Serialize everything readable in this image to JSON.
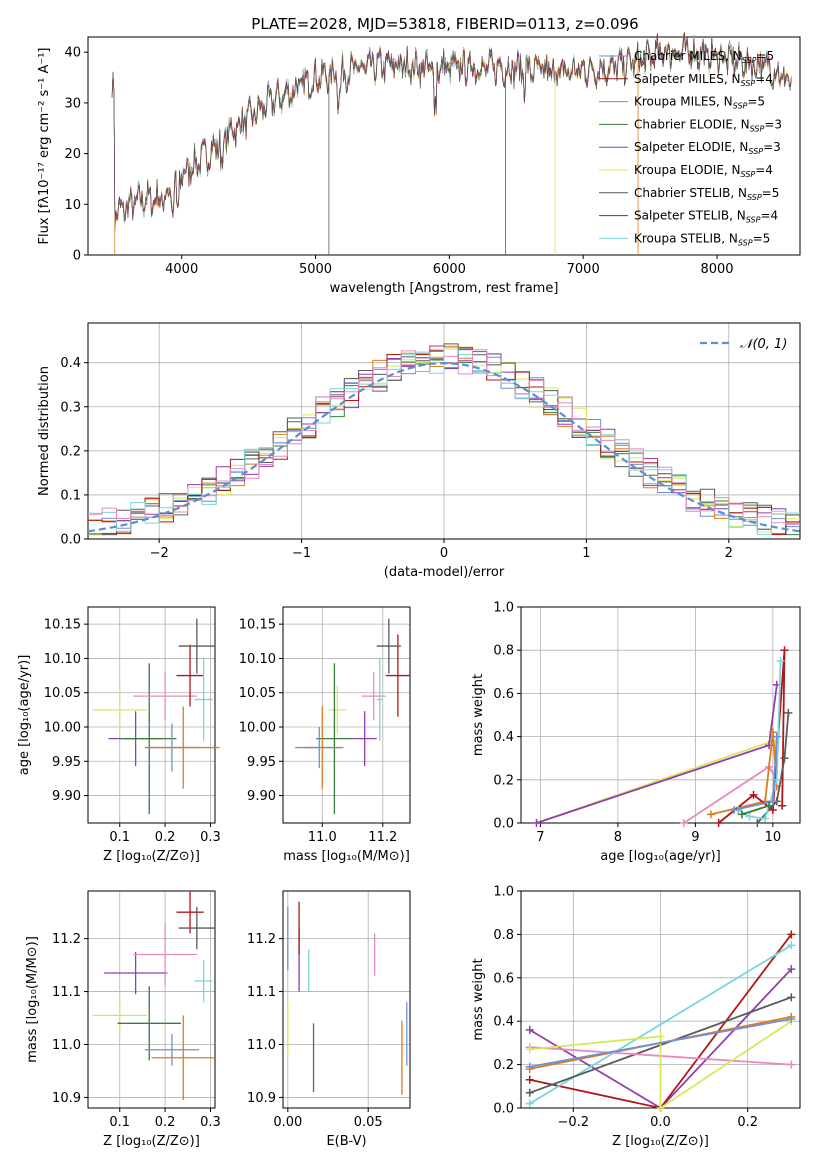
{
  "figure_title": "PLATE=2028, MJD=53818, FIBERID=0113, z=0.096",
  "colors": [
    "#6f8fd8",
    "#8b1a1a",
    "#e07b1e",
    "#3a7d3a",
    "#8e3fb0",
    "#d6e85a",
    "#5a5a5a",
    "#b01818",
    "#78d6dc"
  ],
  "hist_colors": [
    "#6f8fd8",
    "#e07b1e",
    "#3a7d3a",
    "#8e3fb0",
    "#d6e85a",
    "#5a5a5a",
    "#b01818",
    "#78d6dc",
    "#e88abf"
  ],
  "chart_data": [
    {
      "type": "line",
      "panel": "spectrum",
      "title": "",
      "xlabel": "wavelength [Angstrom, rest frame]",
      "ylabel": "Flux [fλ10⁻¹⁷ erg cm⁻² s⁻¹ A⁻¹]",
      "xlim": [
        3300,
        8620
      ],
      "ylim": [
        0,
        43
      ],
      "xticks": [
        4000,
        5000,
        6000,
        7000,
        8000
      ],
      "yticks": [
        0,
        10,
        20,
        30,
        40
      ],
      "grid": false,
      "legend_position": "right",
      "legend": [
        {
          "label": "Chabrier MILES, N",
          "sub": "SSP",
          "tail": "=5"
        },
        {
          "label": "Salpeter MILES, N",
          "sub": "SSP",
          "tail": "=4"
        },
        {
          "label": "Kroupa MILES, N",
          "sub": "SSP",
          "tail": "=5"
        },
        {
          "label": "Chabrier ELODIE, N",
          "sub": "SSP",
          "tail": "=3"
        },
        {
          "label": "Salpeter ELODIE, N",
          "sub": "SSP",
          "tail": "=3"
        },
        {
          "label": "Kroupa ELODIE, N",
          "sub": "SSP",
          "tail": "=4"
        },
        {
          "label": "Chabrier STELIB, N",
          "sub": "SSP",
          "tail": "=5"
        },
        {
          "label": "Salpeter STELIB, N",
          "sub": "SSP",
          "tail": "=4"
        },
        {
          "label": "Kroupa STELIB, N",
          "sub": "SSP",
          "tail": "=5"
        }
      ],
      "continuum": {
        "x": [
          3500,
          3700,
          3850,
          3950,
          4050,
          4200,
          4350,
          4500,
          4650,
          4800,
          5000,
          5200,
          5400,
          5600,
          5800,
          6000,
          6200,
          6400,
          6600,
          6800,
          7000,
          7200,
          7400,
          7600,
          7800,
          8000,
          8200,
          8400,
          8600
        ],
        "y": [
          8,
          11,
          11,
          14,
          17,
          20,
          24,
          27,
          30,
          32,
          35,
          36,
          37,
          37.5,
          37,
          37,
          37,
          37,
          36.5,
          36,
          36.5,
          37,
          38,
          40,
          40,
          39,
          38,
          37,
          33
        ]
      },
      "dips": [
        {
          "x": 5100,
          "y": 0
        },
        {
          "x": 6420,
          "y": 0
        },
        {
          "x": 6790,
          "y": 0
        },
        {
          "x": 7410,
          "y": 0
        },
        {
          "x": 3500,
          "y": 0
        }
      ]
    },
    {
      "type": "line",
      "panel": "residual_histogram",
      "xlabel": "(data-model)/error",
      "ylabel": "Normed distribution",
      "xlim": [
        -2.5,
        2.5
      ],
      "ylim": [
        0,
        0.49
      ],
      "xticks": [
        -2,
        -1,
        0,
        1,
        2
      ],
      "yticks": [
        0.0,
        0.1,
        0.2,
        0.3,
        0.4
      ],
      "grid": true,
      "legend": "𝒩(0, 1)",
      "legend_position": "upper right",
      "reference_curve": "normal pdf (0,1)",
      "bin_width": 0.1
    },
    {
      "type": "scatter",
      "panel": "age_vs_Z",
      "xlabel": "Z [log₁₀(Z/Z⊙)]",
      "ylabel": "age  [log₁₀(age/yr)]",
      "xlim": [
        0.03,
        0.31
      ],
      "ylim": [
        9.86,
        10.175
      ],
      "xticks": [
        0.1,
        0.2,
        0.3
      ],
      "yticks": [
        9.9,
        9.95,
        10.0,
        10.05,
        10.1,
        10.15
      ],
      "grid": true,
      "points": [
        {
          "x": 0.1,
          "y": 10.025,
          "xerr": 0.06,
          "yerr": 0.035,
          "color": "#d6e85a"
        },
        {
          "x": 0.135,
          "y": 9.983,
          "xerr": 0.06,
          "yerr": 0.04,
          "color": "#8e3fb0"
        },
        {
          "x": 0.165,
          "y": 9.983,
          "xerr": 0.06,
          "yerr": 0.11,
          "color": "#3a7d3a"
        },
        {
          "x": 0.2,
          "y": 10.045,
          "xerr": 0.07,
          "yerr": 0.035,
          "color": "#e88abf"
        },
        {
          "x": 0.215,
          "y": 9.97,
          "xerr": 0.06,
          "yerr": 0.035,
          "color": "#6f8fd8"
        },
        {
          "x": 0.24,
          "y": 9.97,
          "xerr": 0.08,
          "yerr": 0.06,
          "color": "#e07b1e"
        },
        {
          "x": 0.255,
          "y": 10.075,
          "xerr": 0.03,
          "yerr": 0.045,
          "color": "#b01818"
        },
        {
          "x": 0.27,
          "y": 10.118,
          "xerr": 0.04,
          "yerr": 0.04,
          "color": "#5a5a5a"
        },
        {
          "x": 0.285,
          "y": 10.04,
          "xerr": 0.02,
          "yerr": 0.06,
          "color": "#78d6dc"
        }
      ]
    },
    {
      "type": "scatter",
      "panel": "age_vs_mass",
      "xlabel": "mass [log₁₀(M/M⊙)]",
      "ylabel": "",
      "xlim": [
        10.87,
        11.29
      ],
      "ylim": [
        9.86,
        10.175
      ],
      "xticks": [
        11.0,
        11.2
      ],
      "yticks": [
        9.9,
        9.95,
        10.0,
        10.05,
        10.1,
        10.15
      ],
      "grid": true,
      "points": [
        {
          "x": 11.05,
          "y": 10.025,
          "xerr": 0.03,
          "yerr": 0.035,
          "color": "#d6e85a"
        },
        {
          "x": 11.04,
          "y": 9.983,
          "xerr": 0.06,
          "yerr": 0.11,
          "color": "#3a7d3a"
        },
        {
          "x": 11.0,
          "y": 9.97,
          "xerr": 0.06,
          "yerr": 0.06,
          "color": "#e07b1e"
        },
        {
          "x": 10.99,
          "y": 9.97,
          "xerr": 0.08,
          "yerr": 0.03,
          "color": "#6f8fd8"
        },
        {
          "x": 11.14,
          "y": 9.983,
          "xerr": 0.04,
          "yerr": 0.04,
          "color": "#8e3fb0"
        },
        {
          "x": 11.17,
          "y": 10.045,
          "xerr": 0.04,
          "yerr": 0.035,
          "color": "#e88abf"
        },
        {
          "x": 11.25,
          "y": 10.075,
          "xerr": 0.04,
          "yerr": 0.06,
          "color": "#b01818"
        },
        {
          "x": 11.22,
          "y": 10.118,
          "xerr": 0.04,
          "yerr": 0.04,
          "color": "#5a5a5a"
        },
        {
          "x": 11.19,
          "y": 10.04,
          "xerr": 0.01,
          "yerr": 0.06,
          "color": "#78d6dc"
        }
      ]
    },
    {
      "type": "line",
      "panel": "mass_weight_vs_age",
      "xlabel": "age  [log₁₀(age/yr)]",
      "ylabel": "mass weight",
      "xlim": [
        6.75,
        10.35
      ],
      "ylim": [
        0,
        1
      ],
      "xticks": [
        7,
        8,
        9,
        10
      ],
      "yticks": [
        0.0,
        0.2,
        0.4,
        0.6,
        0.8,
        1.0
      ],
      "grid": true,
      "series": [
        {
          "color": "#d6e85a",
          "x": [
            6.95,
            10.0,
            10.02
          ],
          "y": [
            0.0,
            0.38,
            0.35
          ]
        },
        {
          "color": "#8e3fb0",
          "x": [
            6.95,
            9.95,
            10.05
          ],
          "y": [
            0.0,
            0.36,
            0.64
          ]
        },
        {
          "color": "#e88abf",
          "x": [
            8.85,
            9.95,
            10.05
          ],
          "y": [
            0.0,
            0.26,
            0.2
          ]
        },
        {
          "color": "#e07b1e",
          "x": [
            9.2,
            9.9,
            10.0,
            10.05
          ],
          "y": [
            0.04,
            0.1,
            0.42,
            0.17
          ]
        },
        {
          "color": "#b01818",
          "x": [
            9.3,
            9.75,
            10.0,
            10.15,
            10.12
          ],
          "y": [
            0.0,
            0.13,
            0.06,
            0.8,
            0.08
          ]
        },
        {
          "color": "#5a5a5a",
          "x": [
            9.8,
            10.05,
            10.15,
            10.2
          ],
          "y": [
            0.0,
            0.1,
            0.3,
            0.51
          ]
        },
        {
          "color": "#78d6dc",
          "x": [
            9.55,
            9.7,
            9.9,
            10.05,
            10.1
          ],
          "y": [
            0.06,
            0.03,
            0.02,
            0.2,
            0.75
          ]
        },
        {
          "color": "#6f8fd8",
          "x": [
            9.5,
            10.0,
            10.05
          ],
          "y": [
            0.06,
            0.1,
            0.4
          ]
        },
        {
          "color": "#3a7d3a",
          "x": [
            9.6,
            9.95
          ],
          "y": [
            0.04,
            0.08
          ]
        }
      ]
    },
    {
      "type": "scatter",
      "panel": "mass_vs_Z",
      "xlabel": "Z [log₁₀(Z/Z⊙)]",
      "ylabel": "mass [log₁₀(M/M⊙)]",
      "xlim": [
        0.03,
        0.31
      ],
      "ylim": [
        10.88,
        11.29
      ],
      "xticks": [
        0.1,
        0.2,
        0.3
      ],
      "yticks": [
        10.9,
        11.0,
        11.1,
        11.2
      ],
      "grid": true,
      "points": [
        {
          "x": 0.1,
          "y": 11.055,
          "xerr": 0.06,
          "yerr": 0.035,
          "color": "#d6e85a"
        },
        {
          "x": 0.135,
          "y": 11.135,
          "xerr": 0.07,
          "yerr": 0.04,
          "color": "#8e3fb0"
        },
        {
          "x": 0.165,
          "y": 11.04,
          "xerr": 0.07,
          "yerr": 0.07,
          "color": "#3a7d3a"
        },
        {
          "x": 0.2,
          "y": 11.17,
          "xerr": 0.07,
          "yerr": 0.06,
          "color": "#e88abf"
        },
        {
          "x": 0.215,
          "y": 10.99,
          "xerr": 0.06,
          "yerr": 0.03,
          "color": "#6f8fd8"
        },
        {
          "x": 0.24,
          "y": 10.975,
          "xerr": 0.07,
          "yerr": 0.08,
          "color": "#e07b1e"
        },
        {
          "x": 0.255,
          "y": 11.25,
          "xerr": 0.03,
          "yerr": 0.04,
          "color": "#b01818"
        },
        {
          "x": 0.27,
          "y": 11.22,
          "xerr": 0.04,
          "yerr": 0.04,
          "color": "#5a5a5a"
        },
        {
          "x": 0.285,
          "y": 11.12,
          "xerr": 0.02,
          "yerr": 0.04,
          "color": "#78d6dc"
        }
      ]
    },
    {
      "type": "scatter",
      "panel": "mass_vs_EBV",
      "xlabel": "E(B-V)",
      "ylabel": "",
      "xlim": [
        -0.003,
        0.076
      ],
      "ylim": [
        10.88,
        11.29
      ],
      "xticks": [
        0.0,
        0.05
      ],
      "yticks": [
        10.9,
        11.0,
        11.1,
        11.2
      ],
      "grid": true,
      "points": [
        {
          "x": 0.0,
          "y": 11.2,
          "xerr": 0,
          "yerr": 0.06,
          "color": "#6f8fd8"
        },
        {
          "x": 0.0,
          "y": 11.03,
          "xerr": 0,
          "yerr": 0.05,
          "color": "#d6e85a"
        },
        {
          "x": 0.007,
          "y": 11.16,
          "xerr": 0,
          "yerr": 0.06,
          "color": "#8e3fb0"
        },
        {
          "x": 0.007,
          "y": 11.22,
          "xerr": 0,
          "yerr": 0.05,
          "color": "#b01818"
        },
        {
          "x": 0.013,
          "y": 11.14,
          "xerr": 0,
          "yerr": 0.04,
          "color": "#78d6dc"
        },
        {
          "x": 0.016,
          "y": 10.975,
          "xerr": 0,
          "yerr": 0.065,
          "color": "#3a7d3a"
        },
        {
          "x": 0.054,
          "y": 11.17,
          "xerr": 0,
          "yerr": 0.04,
          "color": "#e88abf"
        },
        {
          "x": 0.071,
          "y": 10.975,
          "xerr": 0,
          "yerr": 0.07,
          "color": "#e07b1e"
        },
        {
          "x": 0.074,
          "y": 11.02,
          "xerr": 0,
          "yerr": 0.06,
          "color": "#6f8fd8"
        }
      ]
    },
    {
      "type": "line",
      "panel": "mass_weight_vs_Z",
      "xlabel": "Z [log₁₀(Z/Z⊙)]",
      "ylabel": "mass weight",
      "xlim": [
        -0.32,
        0.32
      ],
      "ylim": [
        0,
        1
      ],
      "xticks": [
        -0.2,
        0.0,
        0.2
      ],
      "xticklabels": [
        "−0.2",
        "0.0",
        "0.2"
      ],
      "yticks": [
        0.0,
        0.2,
        0.4,
        0.6,
        0.8,
        1.0
      ],
      "grid": true,
      "series": [
        {
          "color": "#8e3fb0",
          "x": [
            -0.3,
            0.0,
            0.3
          ],
          "y": [
            0.36,
            0.0,
            0.64
          ]
        },
        {
          "color": "#b01818",
          "x": [
            -0.3,
            0.0,
            0.3
          ],
          "y": [
            0.13,
            0.0,
            0.8
          ]
        },
        {
          "color": "#78d6dc",
          "x": [
            -0.3,
            0.3
          ],
          "y": [
            0.02,
            0.75
          ]
        },
        {
          "color": "#5a5a5a",
          "x": [
            -0.3,
            0.3
          ],
          "y": [
            0.07,
            0.51
          ]
        },
        {
          "color": "#e07b1e",
          "x": [
            -0.3,
            0.3
          ],
          "y": [
            0.18,
            0.42
          ]
        },
        {
          "color": "#e88abf",
          "x": [
            -0.3,
            0.3
          ],
          "y": [
            0.28,
            0.2
          ]
        },
        {
          "color": "#d6e85a",
          "x": [
            -0.3,
            0.0,
            0.0,
            0.3
          ],
          "y": [
            0.27,
            0.33,
            0.0,
            0.4
          ]
        },
        {
          "color": "#6f8fd8",
          "x": [
            -0.3,
            0.3
          ],
          "y": [
            0.19,
            0.41
          ]
        }
      ]
    }
  ]
}
